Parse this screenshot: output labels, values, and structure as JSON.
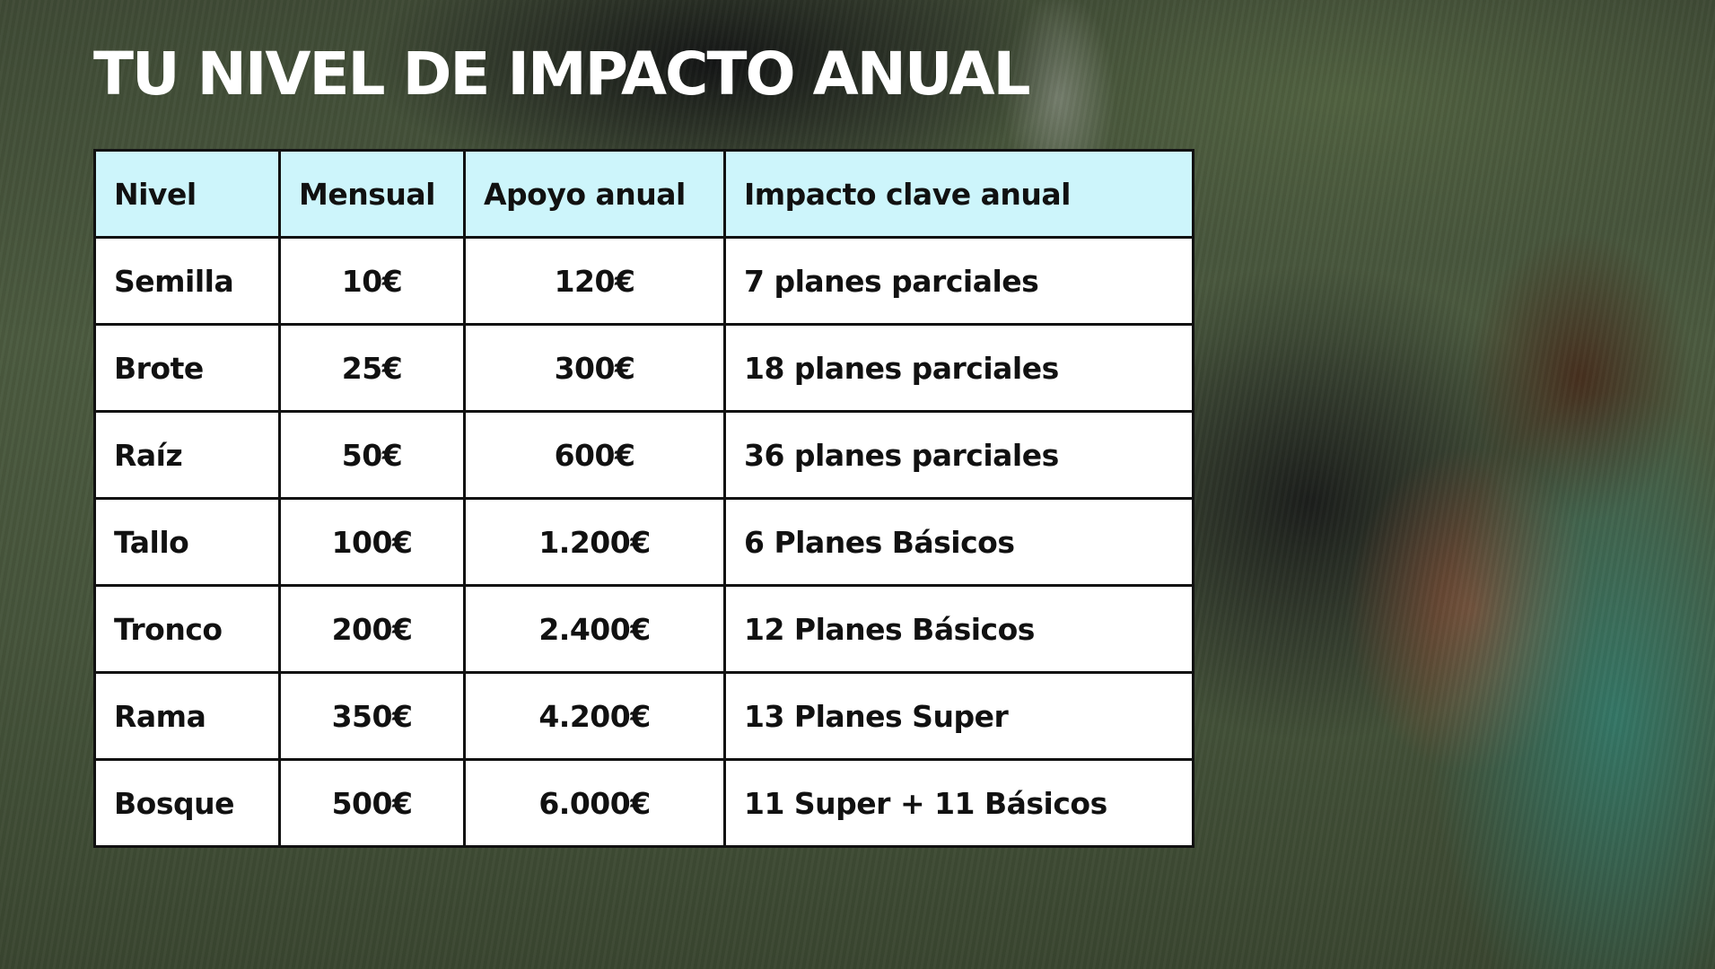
{
  "slide": {
    "title": "TU NIVEL DE IMPACTO ANUAL",
    "table": {
      "headers": [
        "Nivel",
        "Mensual",
        "Apoyo anual",
        "Impacto clave anual"
      ],
      "rows": [
        {
          "nivel": "Semilla",
          "mensual": "10€",
          "anual": "120€",
          "impacto": "7 planes parciales"
        },
        {
          "nivel": "Brote",
          "mensual": "25€",
          "anual": "300€",
          "impacto": "18 planes parciales"
        },
        {
          "nivel": "Raíz",
          "mensual": "50€",
          "anual": "600€",
          "impacto": "36 planes parciales"
        },
        {
          "nivel": "Tallo",
          "mensual": "100€",
          "anual": "1.200€",
          "impacto": "6 Planes Básicos"
        },
        {
          "nivel": "Tronco",
          "mensual": "200€",
          "anual": "2.400€",
          "impacto": "12 Planes Básicos"
        },
        {
          "nivel": "Rama",
          "mensual": "350€",
          "anual": "4.200€",
          "impacto": "13 Planes Super"
        },
        {
          "nivel": "Bosque",
          "mensual": "500€",
          "anual": "6.000€",
          "impacto": "11 Super + 11 Básicos"
        }
      ]
    }
  },
  "colors": {
    "header_bg": "#cdf5fb",
    "cell_bg": "#ffffff",
    "border": "#111111",
    "title": "#ffffff"
  }
}
